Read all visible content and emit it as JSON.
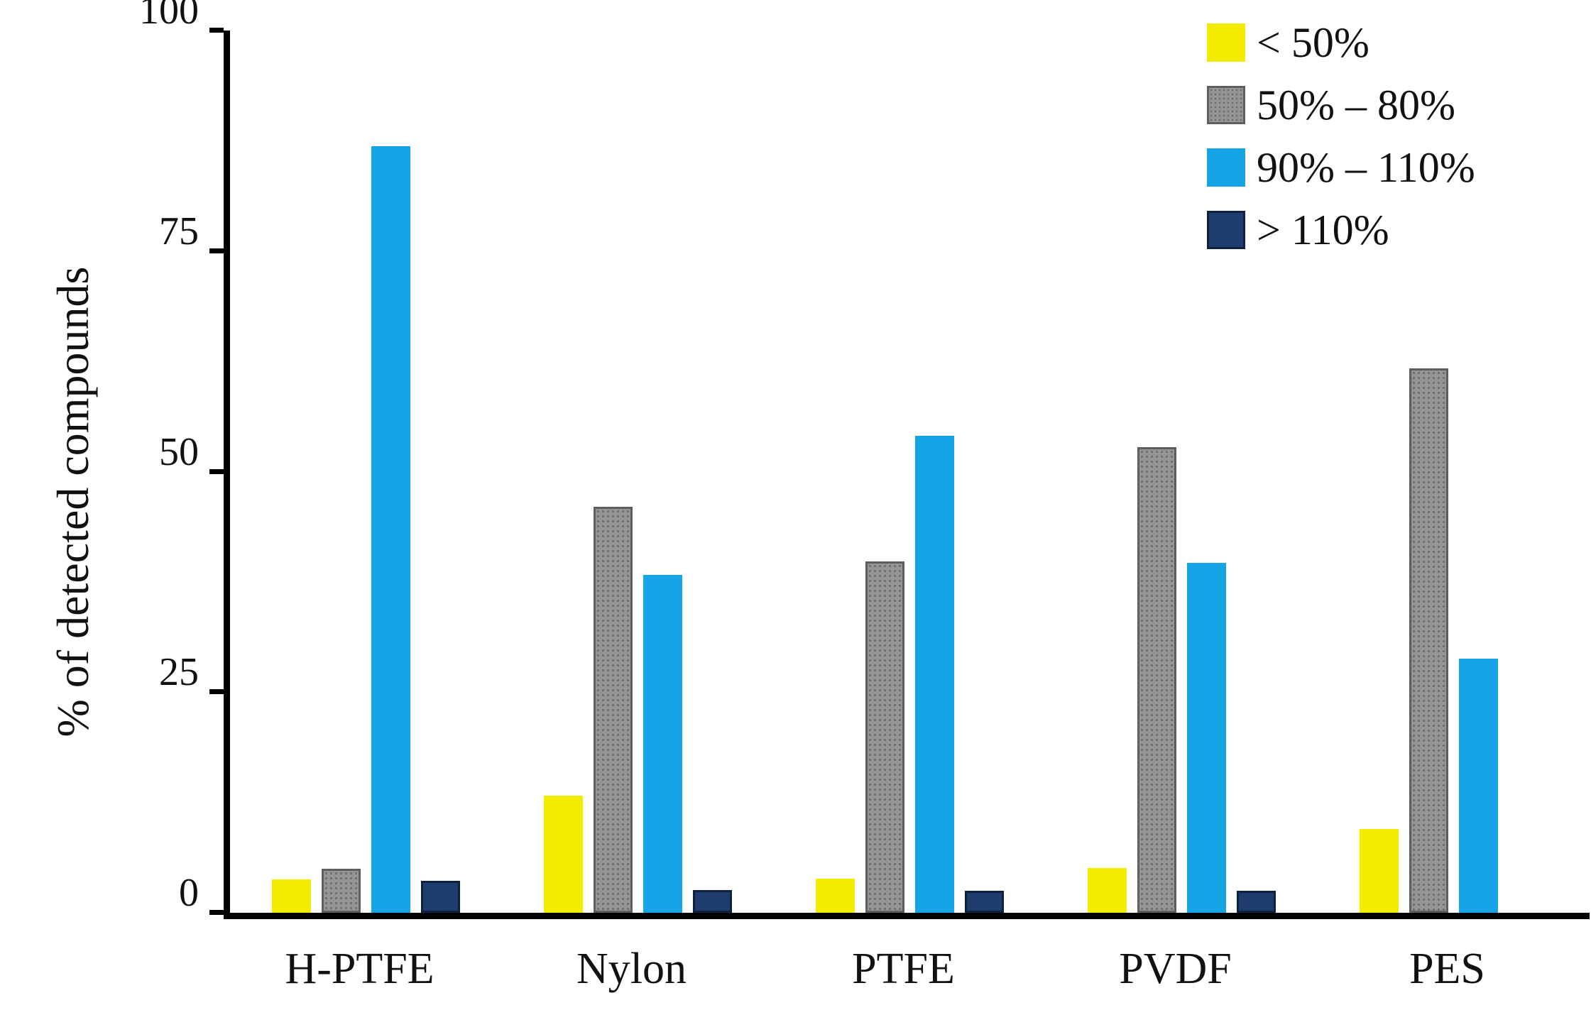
{
  "chart_data": {
    "type": "bar",
    "title": "",
    "xlabel": "",
    "ylabel": "% of detected compounds",
    "ylim": [
      0,
      100
    ],
    "yticks": [
      0,
      25,
      50,
      75,
      100
    ],
    "grid": false,
    "legend_position": "top-right",
    "categories": [
      "H-PTFE",
      "Nylon",
      "PTFE",
      "PVDF",
      "PES"
    ],
    "series": [
      {
        "name": "< 50%",
        "color": "#f3ec00",
        "border": "",
        "texture": "",
        "values": [
          3.8,
          13.3,
          3.9,
          5.1,
          9.5
        ]
      },
      {
        "name": "50% – 80%",
        "color": "#959595",
        "border": "#5e5e5e",
        "texture": "dots",
        "values": [
          5.0,
          46.0,
          39.8,
          52.8,
          61.7
        ]
      },
      {
        "name": "90% – 110%",
        "color": "#15a5e6",
        "border": "",
        "texture": "",
        "values": [
          86.9,
          38.3,
          54.1,
          39.7,
          28.8
        ]
      },
      {
        "name": "> 110%",
        "color": "#1e3c6e",
        "border": "#0e2140",
        "texture": "",
        "values": [
          3.6,
          2.6,
          2.5,
          2.5,
          0
        ]
      }
    ],
    "axis_color": "#000000"
  }
}
